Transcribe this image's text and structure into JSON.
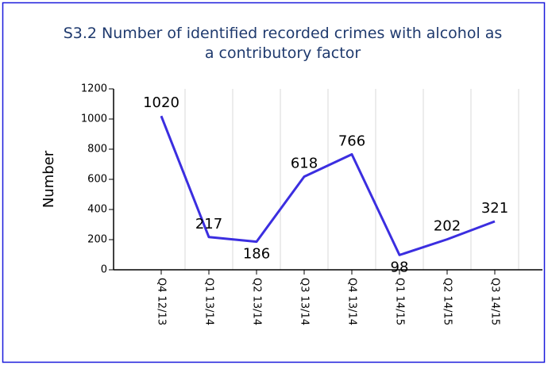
{
  "chart_data": {
    "type": "line",
    "title": "S3.2 Number of identified recorded crimes with alcohol as a contributory factor",
    "y_label": "Number",
    "categories": [
      "Q4 12/13",
      "Q1 13/14",
      "Q2 13/14",
      "Q3 13/14",
      "Q4 13/14",
      "Q1 14/15",
      "Q2 14/15",
      "Q3 14/15"
    ],
    "series": [
      {
        "name": "Number",
        "color": "#3b2ee0",
        "values": [
          1020,
          217,
          186,
          618,
          766,
          98,
          202,
          321
        ]
      }
    ],
    "ylim": [
      0,
      1200
    ],
    "yticks": [
      0,
      200,
      400,
      600,
      800,
      1000,
      1200
    ],
    "grid": true
  }
}
